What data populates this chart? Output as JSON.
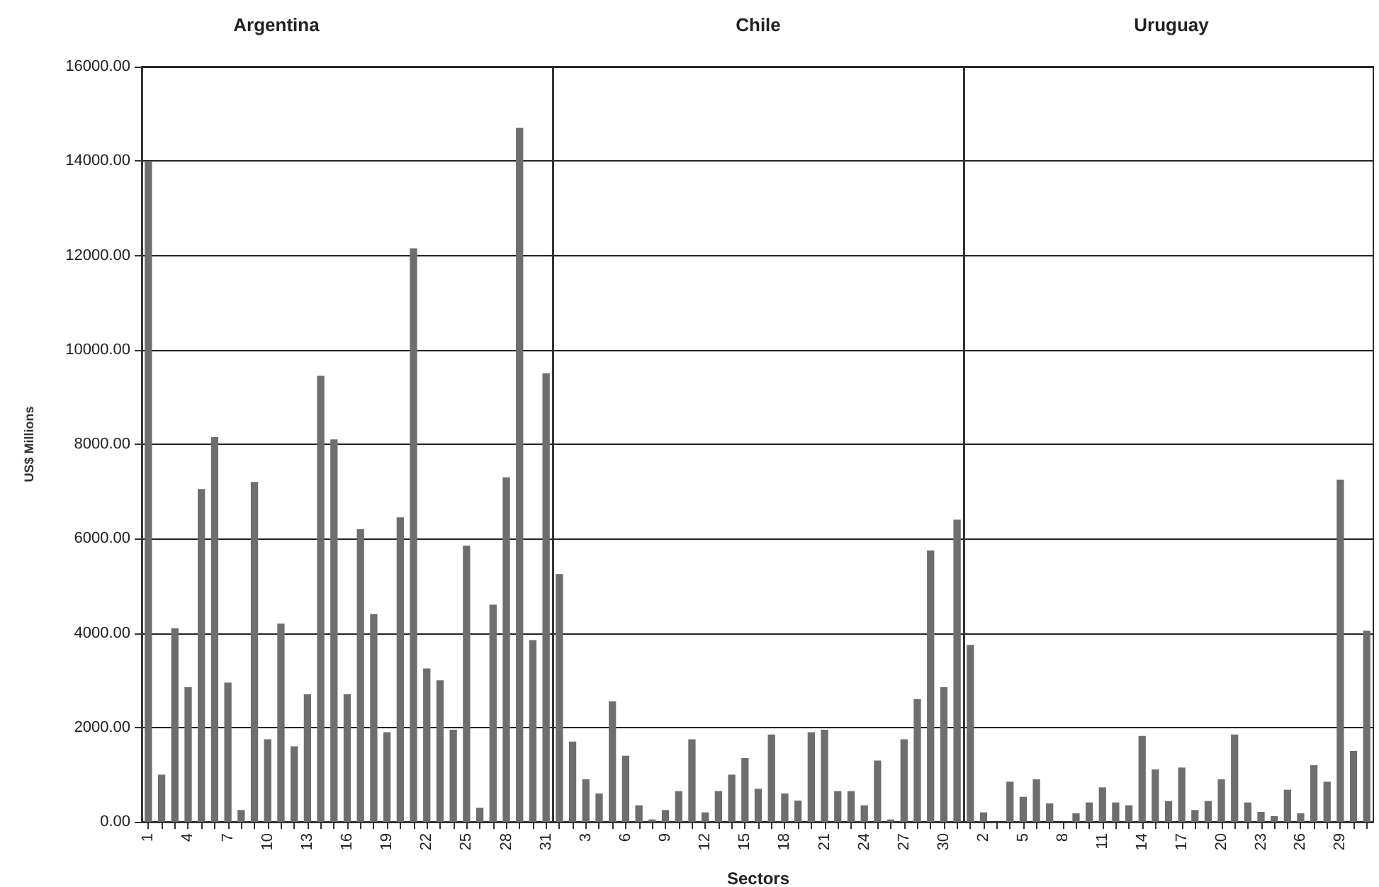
{
  "chart_data": [
    {
      "type": "bar",
      "title": "Argentina",
      "ylabel": "US$ Millions",
      "categories": [
        "1",
        null,
        null,
        "4",
        null,
        null,
        "7",
        null,
        null,
        "10",
        null,
        null,
        "13",
        null,
        null,
        "16",
        null,
        null,
        "19",
        null,
        null,
        "22",
        null,
        null,
        "25",
        null,
        null,
        "28",
        null,
        null,
        "31"
      ],
      "series": [
        {
          "color": "#6e6e6e",
          "values": [
            14000,
            1000,
            4100,
            2850,
            7050,
            8150,
            2950,
            250,
            7200,
            1750,
            4200,
            1600,
            2700,
            9450,
            8100,
            2700,
            6200,
            4400,
            1900,
            6450,
            12150,
            3250,
            3000,
            1950,
            5850,
            300,
            4600,
            7300,
            14700,
            3850,
            9500
          ]
        }
      ],
      "ylim": [
        0,
        16000
      ],
      "yticks": [
        {
          "value": 0,
          "label": "0.00"
        },
        {
          "value": 2000,
          "label": "2000.00"
        },
        {
          "value": 4000,
          "label": "4000.00"
        },
        {
          "value": 6000,
          "label": "6000.00"
        },
        {
          "value": 8000,
          "label": "8000.00"
        },
        {
          "value": 10000,
          "label": "10000.00"
        },
        {
          "value": 12000,
          "label": "12000.00"
        },
        {
          "value": 14000,
          "label": "14000.00"
        },
        {
          "value": 16000,
          "label": "16000.00"
        }
      ],
      "grid": "y"
    },
    {
      "type": "bar",
      "title": "Chile",
      "xlabel": "Sectors",
      "categories": [
        null,
        null,
        "3",
        null,
        null,
        "6",
        null,
        null,
        "9",
        null,
        null,
        "12",
        null,
        null,
        "15",
        null,
        null,
        "18",
        null,
        null,
        "21",
        null,
        null,
        "24",
        null,
        null,
        "27",
        null,
        null,
        "30",
        null
      ],
      "series": [
        {
          "color": "#6e6e6e",
          "values": [
            5250,
            1700,
            900,
            600,
            2550,
            1400,
            350,
            50,
            250,
            650,
            1750,
            200,
            650,
            1000,
            1350,
            700,
            1850,
            600,
            450,
            1900,
            1950,
            650,
            650,
            350,
            1300,
            50,
            1750,
            2600,
            5750,
            2850,
            6400
          ]
        }
      ],
      "ylim": [
        0,
        16000
      ],
      "yticks": [
        0,
        2000,
        4000,
        6000,
        8000,
        10000,
        12000,
        14000,
        16000
      ],
      "grid": "y",
      "tick_labels": "x"
    },
    {
      "type": "bar",
      "title": "Uruguay",
      "categories": [
        null,
        "2",
        null,
        null,
        "5",
        null,
        null,
        "8",
        null,
        null,
        "11",
        null,
        null,
        "14",
        null,
        null,
        "17",
        null,
        null,
        "20",
        null,
        null,
        "23",
        null,
        null,
        "26",
        null,
        null,
        "29",
        null,
        null
      ],
      "series": [
        {
          "color": "#6e6e6e",
          "values": [
            3750,
            200,
            0,
            850,
            530,
            900,
            390,
            0,
            180,
            410,
            730,
            410,
            350,
            1820,
            1110,
            440,
            1150,
            250,
            440,
            900,
            1850,
            410,
            210,
            120,
            680,
            180,
            1200,
            850,
            7250,
            1500,
            4050
          ]
        }
      ],
      "ylim": [
        0,
        16000
      ],
      "yticks": [
        0,
        2000,
        4000,
        6000,
        8000,
        10000,
        12000,
        14000,
        16000
      ],
      "grid": "y",
      "tick_labels": "x"
    }
  ]
}
